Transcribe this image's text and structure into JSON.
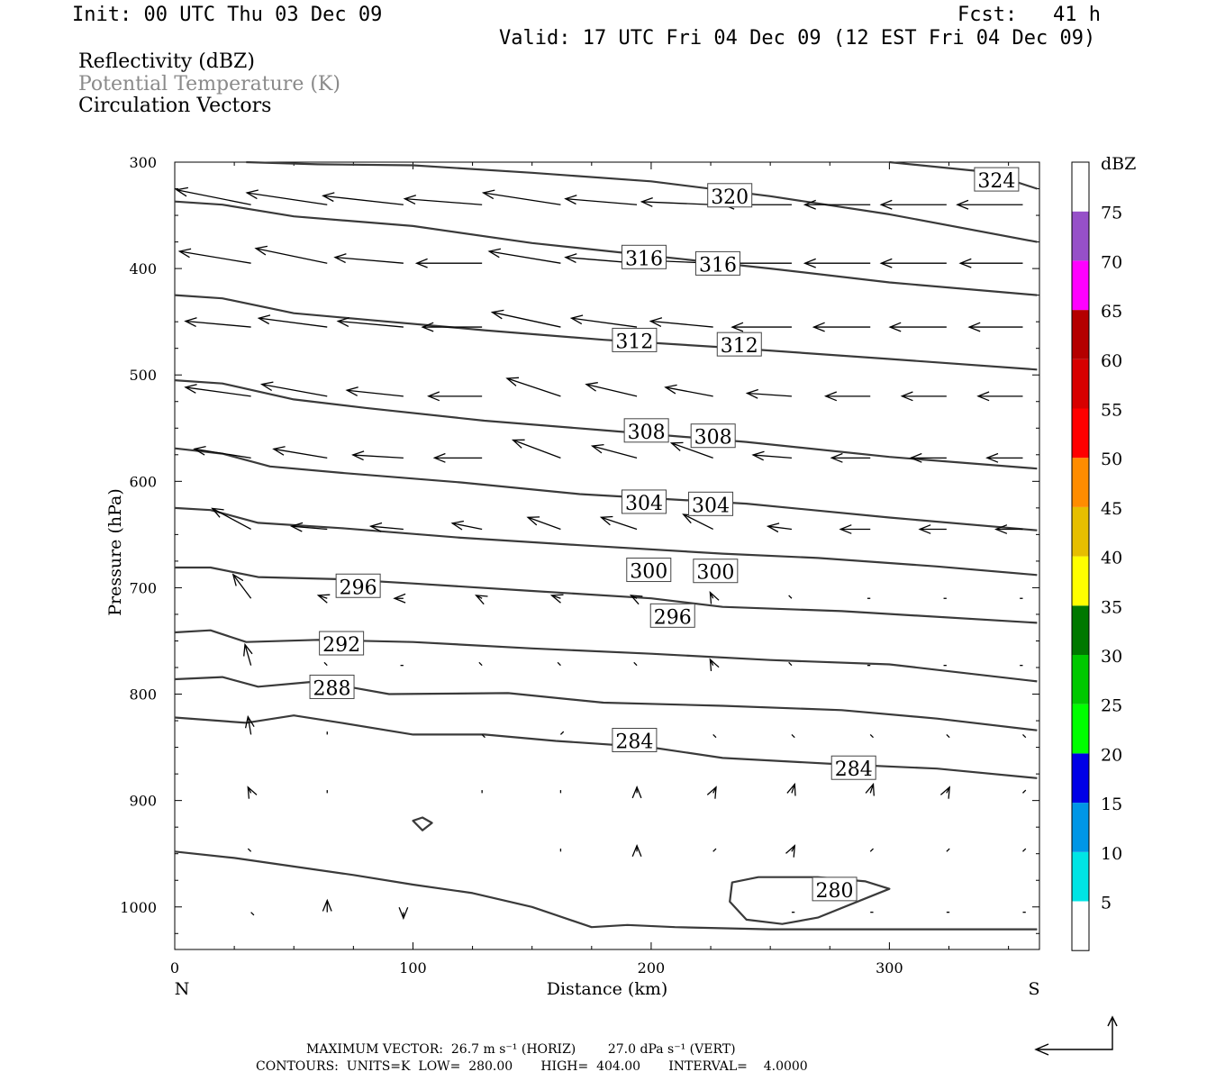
{
  "header": {
    "init": "Init: 00 UTC Thu 03 Dec 09",
    "fcst": "Fcst:   41 h",
    "valid": "Valid: 17 UTC Fri 04 Dec 09 (12 EST Fri 04 Dec 09)"
  },
  "fields": {
    "reflectivity": "Reflectivity (dBZ)",
    "theta": "Potential Temperature (K)",
    "vectors": "Circulation Vectors"
  },
  "colors": {
    "theta_label": "#8a8a8a",
    "contour": "#3a3a3a"
  },
  "footer": {
    "line1": "MAXIMUM VECTOR:  26.7 m s⁻¹ (HORIZ)        27.0 dPa s⁻¹ (VERT)",
    "line2": "CONTOURS:  UNITS=K  LOW=  280.00       HIGH=  404.00       INTERVAL=    4.0000"
  },
  "chart_data": {
    "type": "contour-cross-section",
    "xlabel": "Distance (km)",
    "ylabel": "Pressure (hPa)",
    "xlim": [
      0,
      363
    ],
    "ylim": [
      1040,
      300
    ],
    "x_ticks": [
      0,
      100,
      200,
      300
    ],
    "y_ticks": [
      300,
      400,
      500,
      600,
      700,
      800,
      900,
      1000
    ],
    "x_end_labels": {
      "left": "N",
      "right": "S"
    },
    "colorbar": {
      "title": "dBZ",
      "labels": [
        "5",
        "10",
        "15",
        "20",
        "25",
        "30",
        "35",
        "40",
        "45",
        "50",
        "55",
        "60",
        "65",
        "70",
        "75"
      ],
      "colors": [
        "#ffffff",
        "#00e5e5",
        "#0096e6",
        "#0000e6",
        "#00ff00",
        "#00c800",
        "#007800",
        "#ffff00",
        "#e6be00",
        "#ff8c00",
        "#ff0000",
        "#d70000",
        "#b40000",
        "#ff00ff",
        "#9650c8",
        "#ffffff"
      ]
    },
    "contours": [
      {
        "value": 280,
        "points": [
          [
            0,
            948
          ],
          [
            25,
            954
          ],
          [
            50,
            962
          ],
          [
            75,
            970
          ],
          [
            100,
            979
          ],
          [
            125,
            987
          ],
          [
            150,
            1000
          ],
          [
            175,
            1019
          ],
          [
            190,
            1017
          ],
          [
            210,
            1019
          ],
          [
            250,
            1021
          ],
          [
            300,
            1021
          ],
          [
            362,
            1021
          ]
        ]
      },
      {
        "value": 280,
        "closed": true,
        "points": [
          [
            234,
            977
          ],
          [
            245,
            972
          ],
          [
            270,
            972
          ],
          [
            290,
            976
          ],
          [
            300,
            983
          ],
          [
            290,
            992
          ],
          [
            270,
            1010
          ],
          [
            255,
            1016
          ],
          [
            240,
            1012
          ],
          [
            233,
            995
          ]
        ]
      },
      {
        "value": 280,
        "closed": true,
        "points": [
          [
            100,
            919
          ],
          [
            104,
            916
          ],
          [
            108,
            921
          ],
          [
            104,
            928
          ]
        ]
      },
      {
        "value": 284,
        "points": [
          [
            0,
            822
          ],
          [
            30,
            827
          ],
          [
            50,
            820
          ],
          [
            70,
            827
          ],
          [
            100,
            838
          ],
          [
            130,
            838
          ],
          [
            160,
            844
          ],
          [
            200,
            850
          ],
          [
            230,
            860
          ],
          [
            280,
            866
          ],
          [
            320,
            870
          ],
          [
            362,
            879
          ]
        ]
      },
      {
        "value": 288,
        "points": [
          [
            0,
            786
          ],
          [
            20,
            784
          ],
          [
            35,
            793
          ],
          [
            60,
            788
          ],
          [
            90,
            800
          ],
          [
            140,
            799
          ],
          [
            180,
            808
          ],
          [
            230,
            811
          ],
          [
            280,
            815
          ],
          [
            320,
            823
          ],
          [
            362,
            834
          ]
        ]
      },
      {
        "value": 292,
        "points": [
          [
            0,
            742
          ],
          [
            15,
            740
          ],
          [
            30,
            751
          ],
          [
            60,
            749
          ],
          [
            100,
            751
          ],
          [
            150,
            757
          ],
          [
            200,
            762
          ],
          [
            250,
            768
          ],
          [
            300,
            772
          ],
          [
            362,
            788
          ]
        ]
      },
      {
        "value": 296,
        "points": [
          [
            0,
            681
          ],
          [
            15,
            681
          ],
          [
            35,
            690
          ],
          [
            70,
            692
          ],
          [
            100,
            696
          ],
          [
            150,
            703
          ],
          [
            200,
            710
          ],
          [
            230,
            718
          ],
          [
            280,
            722
          ],
          [
            362,
            733
          ]
        ]
      },
      {
        "value": 300,
        "points": [
          [
            0,
            625
          ],
          [
            15,
            627
          ],
          [
            35,
            639
          ],
          [
            70,
            644
          ],
          [
            120,
            653
          ],
          [
            170,
            660
          ],
          [
            230,
            668
          ],
          [
            270,
            672
          ],
          [
            320,
            680
          ],
          [
            362,
            688
          ]
        ]
      },
      {
        "value": 304,
        "points": [
          [
            0,
            569
          ],
          [
            20,
            574
          ],
          [
            40,
            586
          ],
          [
            70,
            592
          ],
          [
            120,
            601
          ],
          [
            170,
            612
          ],
          [
            240,
            621
          ],
          [
            300,
            634
          ],
          [
            362,
            646
          ]
        ]
      },
      {
        "value": 308,
        "points": [
          [
            0,
            505
          ],
          [
            20,
            508
          ],
          [
            50,
            523
          ],
          [
            80,
            531
          ],
          [
            130,
            543
          ],
          [
            180,
            552
          ],
          [
            240,
            563
          ],
          [
            300,
            577
          ],
          [
            362,
            588
          ]
        ]
      },
      {
        "value": 312,
        "points": [
          [
            0,
            425
          ],
          [
            20,
            428
          ],
          [
            50,
            442
          ],
          [
            80,
            448
          ],
          [
            130,
            458
          ],
          [
            180,
            467
          ],
          [
            230,
            474
          ],
          [
            300,
            485
          ],
          [
            362,
            495
          ]
        ]
      },
      {
        "value": 316,
        "points": [
          [
            0,
            337
          ],
          [
            20,
            340
          ],
          [
            50,
            351
          ],
          [
            100,
            360
          ],
          [
            150,
            376
          ],
          [
            200,
            388
          ],
          [
            250,
            400
          ],
          [
            300,
            413
          ],
          [
            362,
            425
          ]
        ]
      },
      {
        "value": 320,
        "points": [
          [
            30,
            300
          ],
          [
            60,
            302
          ],
          [
            100,
            303
          ],
          [
            150,
            310
          ],
          [
            200,
            318
          ],
          [
            250,
            332
          ],
          [
            300,
            349
          ],
          [
            362,
            375
          ]
        ]
      },
      {
        "value": 324,
        "points": [
          [
            300,
            300
          ],
          [
            340,
            309
          ],
          [
            362,
            325
          ]
        ]
      }
    ],
    "contour_labels": [
      {
        "value": "324",
        "x": 345,
        "p": 317
      },
      {
        "value": "320",
        "x": 233,
        "p": 332
      },
      {
        "value": "316",
        "x": 197,
        "p": 390
      },
      {
        "value": "316",
        "x": 228,
        "p": 396
      },
      {
        "value": "312",
        "x": 193,
        "p": 468
      },
      {
        "value": "312",
        "x": 237,
        "p": 472
      },
      {
        "value": "308",
        "x": 198,
        "p": 553
      },
      {
        "value": "308",
        "x": 226,
        "p": 558
      },
      {
        "value": "304",
        "x": 197,
        "p": 620
      },
      {
        "value": "304",
        "x": 225,
        "p": 622
      },
      {
        "value": "300",
        "x": 199,
        "p": 684
      },
      {
        "value": "300",
        "x": 227,
        "p": 685
      },
      {
        "value": "296",
        "x": 77,
        "p": 699
      },
      {
        "value": "296",
        "x": 209,
        "p": 727
      },
      {
        "value": "292",
        "x": 70,
        "p": 753
      },
      {
        "value": "288",
        "x": 66,
        "p": 794
      },
      {
        "value": "284",
        "x": 193,
        "p": 844
      },
      {
        "value": "284",
        "x": 285,
        "p": 870
      },
      {
        "value": "280",
        "x": 277,
        "p": 984
      }
    ],
    "vectors": [
      {
        "p": 340,
        "x": [
          32,
          64,
          96,
          129,
          162,
          194,
          226,
          259,
          292,
          324,
          356
        ],
        "u": [
          -25,
          -27,
          -27,
          -26,
          -26,
          -24,
          -24,
          -23,
          -22,
          -22,
          -22
        ],
        "w": [
          -5,
          -4,
          -3,
          -2,
          -4,
          -2,
          -1,
          0,
          0,
          0,
          0
        ]
      },
      {
        "p": 395,
        "x": [
          32,
          64,
          96,
          129,
          162,
          194,
          226,
          259,
          292,
          324,
          356
        ],
        "u": [
          -24,
          -24,
          -23,
          -22,
          -24,
          -24,
          -24,
          -23,
          -22,
          -22,
          -21
        ],
        "w": [
          -4,
          -5,
          -2,
          0,
          -4,
          -2,
          -1,
          0,
          0,
          0,
          0
        ]
      },
      {
        "p": 455,
        "x": [
          32,
          64,
          96,
          129,
          162,
          194,
          226,
          259,
          292,
          324,
          356
        ],
        "u": [
          -22,
          -23,
          -22,
          -20,
          -23,
          -22,
          -21,
          -20,
          -19,
          -19,
          -18
        ],
        "w": [
          -2,
          -3,
          -2,
          0,
          -5,
          -3,
          -2,
          0,
          0,
          0,
          0
        ]
      },
      {
        "p": 520,
        "x": [
          32,
          64,
          96,
          129,
          162,
          194,
          226,
          259,
          292,
          324,
          356
        ],
        "u": [
          -22,
          -22,
          -19,
          -18,
          -18,
          -17,
          -16,
          -15,
          -15,
          -15,
          -15
        ],
        "w": [
          -3,
          -4,
          -2,
          0,
          -6,
          -4,
          -3,
          -1,
          0,
          0,
          0
        ]
      },
      {
        "p": 578,
        "x": [
          32,
          64,
          96,
          129,
          162,
          194,
          226,
          259,
          292,
          324,
          356
        ],
        "u": [
          -19,
          -18,
          -17,
          -16,
          -16,
          -15,
          -14,
          -13,
          -13,
          -12,
          -12
        ],
        "w": [
          -3,
          -3,
          -1,
          0,
          -6,
          -4,
          -5,
          -1,
          0,
          0,
          0
        ]
      },
      {
        "p": 645,
        "x": [
          32,
          64,
          96,
          129,
          162,
          194,
          226,
          259,
          292,
          324,
          356
        ],
        "u": [
          -13,
          -12,
          -11,
          -10,
          -11,
          -12,
          -10,
          -8,
          -10,
          -9,
          -9
        ],
        "w": [
          -7,
          -1,
          -1,
          -2,
          -4,
          -4,
          -5,
          -1,
          0,
          0,
          0
        ]
      },
      {
        "p": 710,
        "x": [
          32,
          64,
          96,
          129,
          162,
          194,
          226,
          259,
          292,
          324,
          356
        ],
        "u": [
          -6,
          -3,
          -3,
          -2,
          -3,
          -2,
          -1,
          -1,
          -1,
          -1,
          -1
        ],
        "w": [
          -8,
          -1,
          0,
          -1,
          -1,
          -1,
          -2,
          -1,
          0,
          0,
          0
        ]
      },
      {
        "p": 773,
        "x": [
          32,
          64,
          96,
          129,
          162,
          194,
          226,
          259,
          292,
          324,
          356
        ],
        "u": [
          -2,
          -1,
          -1,
          -1,
          -1,
          -1,
          -1,
          -1,
          -1,
          -1,
          -1
        ],
        "w": [
          -7,
          -1,
          0,
          -1,
          -1,
          -1,
          -2,
          -1,
          0,
          0,
          0
        ]
      },
      {
        "p": 838,
        "x": [
          32,
          64,
          96,
          129,
          162,
          194,
          226,
          259,
          292,
          324,
          356
        ],
        "u": [
          -1,
          0,
          0,
          1,
          1,
          1,
          1,
          1,
          1,
          1,
          1
        ],
        "w": [
          -6,
          -1,
          0,
          1,
          -1,
          -1,
          1,
          1,
          1,
          1,
          1
        ]
      },
      {
        "p": 893,
        "x": [
          32,
          64,
          96,
          129,
          162,
          194,
          226,
          259,
          292,
          324,
          356
        ],
        "u": [
          -1,
          0,
          0,
          0,
          0,
          0,
          1,
          1,
          1,
          1,
          1
        ],
        "w": [
          -2,
          -1,
          0,
          -1,
          -1,
          -2,
          -2,
          -3,
          -3,
          -2,
          -1
        ]
      },
      {
        "p": 948,
        "x": [
          32,
          64,
          96,
          129,
          162,
          194,
          226,
          259,
          292,
          324,
          356
        ],
        "u": [
          -1,
          0,
          0,
          0,
          0,
          0,
          1,
          1,
          1,
          1,
          1
        ],
        "w": [
          -1,
          0,
          0,
          0,
          -1,
          -2,
          -1,
          -2,
          -1,
          -1,
          -1
        ]
      },
      {
        "p": 1005,
        "x": [
          32,
          64,
          96,
          129,
          162,
          194,
          226,
          259,
          292,
          324,
          356
        ],
        "u": [
          1,
          0,
          0,
          0,
          0,
          0,
          0,
          1,
          1,
          1,
          1
        ],
        "w": [
          1,
          -4,
          2,
          0,
          0,
          0,
          0,
          0,
          0,
          0,
          0
        ]
      }
    ]
  }
}
